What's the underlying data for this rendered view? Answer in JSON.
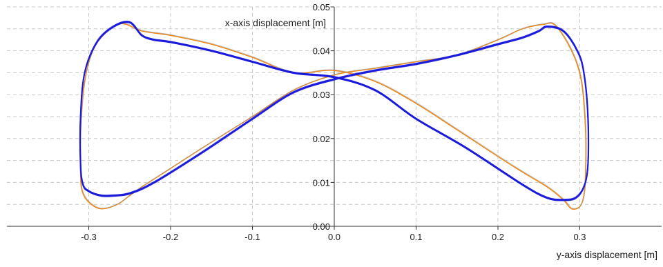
{
  "chart_data": {
    "type": "line",
    "title": "",
    "xlabel": "y-axis displacement [m]",
    "ylabel": "x-axis displacement [m]",
    "xlim": [
      -0.4,
      0.4
    ],
    "ylim": [
      0.0,
      0.05
    ],
    "x_ticks": [
      -0.3,
      -0.2,
      -0.1,
      0.0,
      0.1,
      0.2,
      0.3
    ],
    "x_tick_labels": [
      "-0.3",
      "-0.2",
      "-0.1",
      "0.0",
      "0.1",
      "0.2",
      "0.3"
    ],
    "y_ticks": [
      0.0,
      0.01,
      0.02,
      0.03,
      0.04,
      0.05
    ],
    "y_tick_labels": [
      "0.00",
      "0.01",
      "0.02",
      "0.03",
      "0.04",
      "0.05"
    ],
    "grid": true,
    "colors": {
      "blue": "#1a1adb",
      "orange": "#ee8a1a",
      "grid": "#c8c8c8"
    },
    "series": [
      {
        "color": "#ee8a1a",
        "x": [
          0.0,
          -0.05,
          -0.1,
          -0.15,
          -0.2,
          -0.235,
          -0.26,
          -0.28,
          -0.295,
          -0.305,
          -0.31,
          -0.31,
          -0.308,
          -0.3,
          -0.285,
          -0.265,
          -0.25,
          -0.235,
          -0.21,
          -0.16,
          -0.1,
          -0.05,
          0.0,
          0.05,
          0.1,
          0.15,
          0.2,
          0.23,
          0.255,
          0.27,
          0.29,
          0.302,
          0.307,
          0.307,
          0.305,
          0.3,
          0.29,
          0.28,
          0.26,
          0.22,
          0.15,
          0.1,
          0.05,
          0.0
        ],
        "y": [
          0.0355,
          0.035,
          0.0385,
          0.0415,
          0.0435,
          0.0445,
          0.0462,
          0.044,
          0.04,
          0.033,
          0.022,
          0.012,
          0.008,
          0.0055,
          0.004,
          0.005,
          0.007,
          0.009,
          0.012,
          0.018,
          0.025,
          0.031,
          0.0345,
          0.036,
          0.0375,
          0.039,
          0.0425,
          0.045,
          0.046,
          0.0458,
          0.04,
          0.033,
          0.022,
          0.012,
          0.007,
          0.0045,
          0.004,
          0.006,
          0.009,
          0.0135,
          0.022,
          0.028,
          0.033,
          0.0355
        ]
      },
      {
        "color": "#1a1adb",
        "x": [
          0.0,
          -0.05,
          -0.1,
          -0.15,
          -0.2,
          -0.22,
          -0.235,
          -0.25,
          -0.27,
          -0.29,
          -0.305,
          -0.31,
          -0.31,
          -0.307,
          -0.3,
          -0.285,
          -0.27,
          -0.25,
          -0.22,
          -0.16,
          -0.1,
          -0.05,
          0.0,
          0.05,
          0.1,
          0.15,
          0.2,
          0.23,
          0.25,
          0.26,
          0.28,
          0.297,
          0.305,
          0.31,
          0.31,
          0.305,
          0.295,
          0.28,
          0.26,
          0.23,
          0.16,
          0.1,
          0.05,
          0.0
        ],
        "y": [
          0.034,
          0.035,
          0.0375,
          0.04,
          0.042,
          0.0425,
          0.0435,
          0.0465,
          0.0455,
          0.042,
          0.035,
          0.025,
          0.014,
          0.0095,
          0.008,
          0.007,
          0.007,
          0.0075,
          0.01,
          0.017,
          0.0245,
          0.0305,
          0.0335,
          0.0355,
          0.037,
          0.039,
          0.0415,
          0.043,
          0.0445,
          0.0455,
          0.0445,
          0.04,
          0.035,
          0.025,
          0.014,
          0.009,
          0.0065,
          0.006,
          0.0065,
          0.0095,
          0.018,
          0.0245,
          0.031,
          0.034
        ]
      }
    ]
  }
}
